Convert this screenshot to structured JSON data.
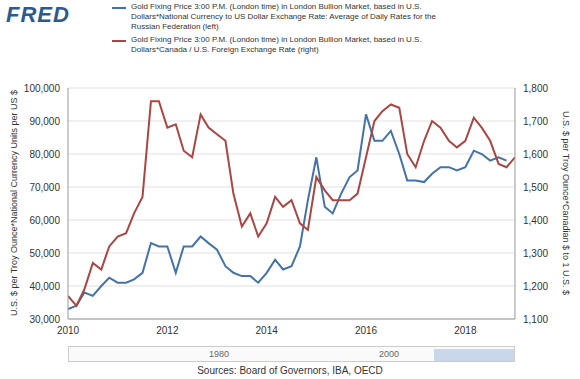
{
  "chart_data": {
    "type": "line",
    "logo": "FRED",
    "source": "Sources: Board of Governors, IBA, OECD",
    "navigator_labels": [
      "1980",
      "2000"
    ],
    "y_label": "U.S. $ per Troy Ounce*National Currency Units per US $",
    "y2_label": "U.S. $ per Troy Ounce*Canadian $ to 1 U.S. $",
    "x": [
      2010.0,
      2010.17,
      2010.33,
      2010.5,
      2010.67,
      2010.83,
      2011.0,
      2011.17,
      2011.33,
      2011.5,
      2011.67,
      2011.83,
      2012.0,
      2012.17,
      2012.33,
      2012.5,
      2012.67,
      2012.83,
      2013.0,
      2013.17,
      2013.33,
      2013.5,
      2013.67,
      2013.83,
      2014.0,
      2014.17,
      2014.33,
      2014.5,
      2014.67,
      2014.83,
      2015.0,
      2015.17,
      2015.33,
      2015.5,
      2015.67,
      2015.83,
      2016.0,
      2016.17,
      2016.33,
      2016.5,
      2016.67,
      2016.83,
      2017.0,
      2017.17,
      2017.33,
      2017.5,
      2017.67,
      2017.83,
      2018.0,
      2018.17,
      2018.33,
      2018.5,
      2018.67,
      2018.83,
      2019.0
    ],
    "series": [
      {
        "name": "Gold Fixing Price 3:00 P.M. (London time) in London Bullion Market, based in U.S. Dollars*National Currency to US Dollar Exchange Rate: Average of Daily Rates for the Russian Federation (left)",
        "color": "#4572a7",
        "axis": "y",
        "values": [
          33000,
          34000,
          38000,
          37000,
          40000,
          42500,
          41000,
          41000,
          42000,
          44000,
          53000,
          52000,
          52000,
          44000,
          52000,
          52000,
          55000,
          53000,
          51000,
          46000,
          44000,
          43000,
          43000,
          41000,
          44000,
          48000,
          45000,
          46000,
          52000,
          66000,
          79000,
          64000,
          62000,
          68000,
          73000,
          75000,
          92000,
          84000,
          84000,
          87000,
          80000,
          72000,
          72000,
          71500,
          74000,
          76000,
          76000,
          75000,
          76000,
          81000,
          80000,
          78000,
          79000,
          78000,
          null
        ]
      },
      {
        "name": "Gold Fixing Price 3:00 P.M. (London time) in London Bullion Market, based in U.S. Dollars*Canada / U.S. Foreign Exchange Rate (right)",
        "color": "#aa4643",
        "axis": "y2",
        "values": [
          1170,
          1140,
          1190,
          1270,
          1250,
          1320,
          1350,
          1360,
          1420,
          1470,
          1760,
          1760,
          1680,
          1690,
          1610,
          1590,
          1720,
          1680,
          1660,
          1640,
          1480,
          1380,
          1420,
          1350,
          1390,
          1470,
          1440,
          1460,
          1390,
          1370,
          1530,
          1490,
          1460,
          1460,
          1460,
          1480,
          1590,
          1700,
          1730,
          1750,
          1740,
          1600,
          1560,
          1640,
          1700,
          1680,
          1640,
          1620,
          1640,
          1710,
          1680,
          1640,
          1570,
          1560,
          1590
        ]
      }
    ],
    "xlim": [
      2010,
      2019
    ],
    "xticks": [
      2010,
      2012,
      2014,
      2016,
      2018
    ],
    "ylim": [
      30000,
      100000
    ],
    "yticks": [
      {
        "value": 30000,
        "label": "30,000"
      },
      {
        "value": 40000,
        "label": "40,000"
      },
      {
        "value": 50000,
        "label": "50,000"
      },
      {
        "value": 60000,
        "label": "60,000"
      },
      {
        "value": 70000,
        "label": "70,000"
      },
      {
        "value": 80000,
        "label": "80,000"
      },
      {
        "value": 90000,
        "label": "90,000"
      },
      {
        "value": 100000,
        "label": "100,000"
      }
    ],
    "y2lim": [
      1100,
      1800
    ],
    "y2ticks": [
      {
        "value": 1100,
        "label": "1,100"
      },
      {
        "value": 1200,
        "label": "1,200"
      },
      {
        "value": 1300,
        "label": "1,300"
      },
      {
        "value": 1400,
        "label": "1,400"
      },
      {
        "value": 1500,
        "label": "1,500"
      },
      {
        "value": 1600,
        "label": "1,600"
      },
      {
        "value": 1700,
        "label": "1,700"
      },
      {
        "value": 1800,
        "label": "1,800"
      }
    ],
    "grid": true
  }
}
